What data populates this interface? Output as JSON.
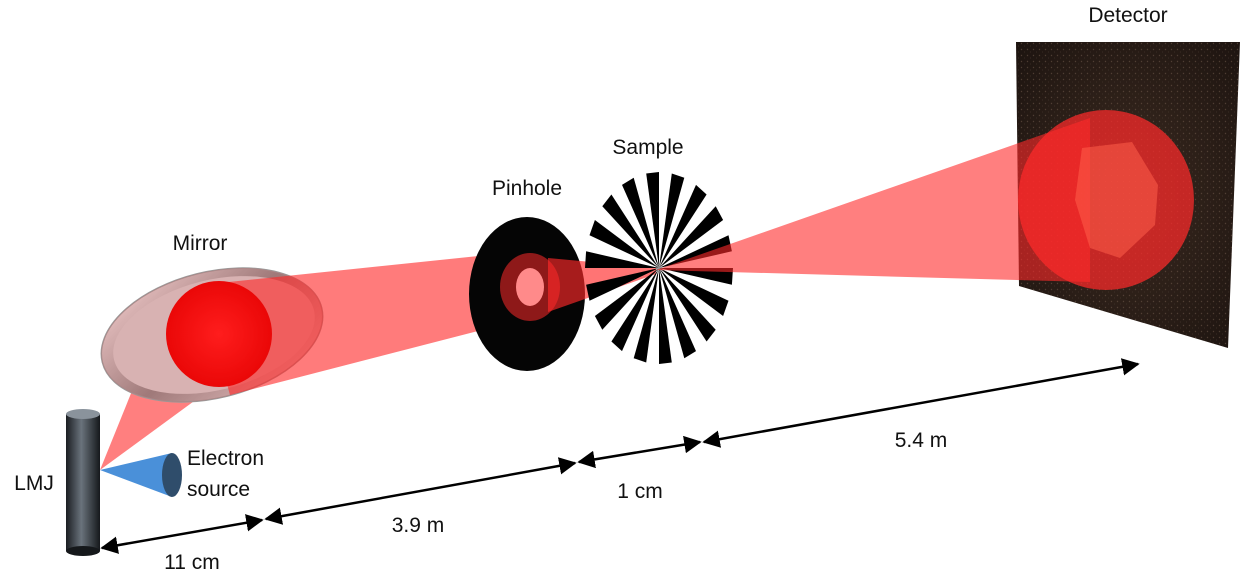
{
  "labels": {
    "detector": "Detector",
    "sample": "Sample",
    "pinhole": "Pinhole",
    "mirror": "Mirror",
    "lmj": "LMJ",
    "electron_source_line1": "Electron",
    "electron_source_line2": "source"
  },
  "distances": {
    "lmj_to_mirror": "11 cm",
    "mirror_to_pinhole": "3.9 m",
    "pinhole_to_sample": "1 cm",
    "sample_to_detector": "5.4 m"
  },
  "colors": {
    "beam": "#ff2a2a",
    "detector": "#2a1d16",
    "electron_cone": "#4a90d9",
    "lmj_cylinder": "#3a3f45"
  }
}
